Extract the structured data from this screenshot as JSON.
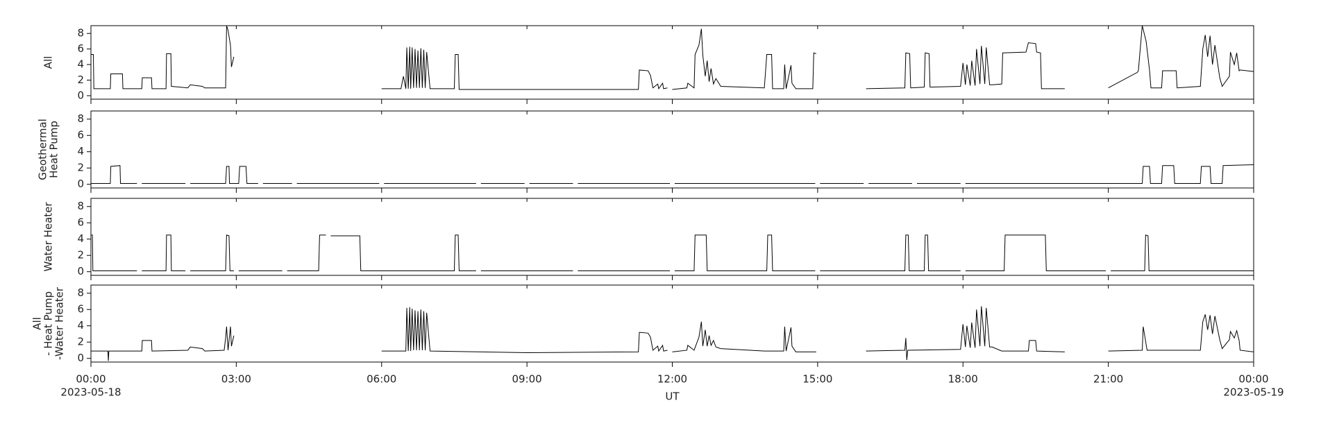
{
  "chart_data": [
    {
      "type": "line",
      "ylabel": [
        "All"
      ],
      "color": "#000000",
      "xlim": [
        0,
        24
      ],
      "xticks": [
        0,
        3,
        6,
        9,
        12,
        15,
        18,
        21,
        24
      ],
      "ylim": [
        -0.45,
        9.0
      ],
      "yticks": [
        0,
        2,
        4,
        6,
        8
      ],
      "x": [
        0,
        0.05,
        0.06,
        0.4,
        0.41,
        0.65,
        0.66,
        1.05,
        1.06,
        1.25,
        1.26,
        1.55,
        1.56,
        1.65,
        1.66,
        2.0,
        2.05,
        2.3,
        2.35,
        2.78,
        2.8,
        2.83,
        2.88,
        2.9,
        2.95,
        3.0,
        6.0,
        6.4,
        6.45,
        6.5,
        6.52,
        6.55,
        6.58,
        6.6,
        6.63,
        6.66,
        6.69,
        6.72,
        6.75,
        6.78,
        6.81,
        6.84,
        6.87,
        6.9,
        6.93,
        7.0,
        7.5,
        7.52,
        7.58,
        7.6,
        9.0,
        11.3,
        11.32,
        11.5,
        11.55,
        11.6,
        11.7,
        11.72,
        11.8,
        11.82,
        11.9,
        11.95,
        12.0,
        12.3,
        12.32,
        12.45,
        12.47,
        12.55,
        12.6,
        12.63,
        12.68,
        12.72,
        12.76,
        12.8,
        12.85,
        12.9,
        13.0,
        13.9,
        13.95,
        14.05,
        14.07,
        14.3,
        14.32,
        14.35,
        14.45,
        14.47,
        14.55,
        14.9,
        14.92,
        14.97,
        15.0,
        16.0,
        16.8,
        16.82,
        16.9,
        16.92,
        17.2,
        17.22,
        17.3,
        17.32,
        17.95,
        18.0,
        18.05,
        18.08,
        18.15,
        18.18,
        18.25,
        18.28,
        18.35,
        18.38,
        18.45,
        18.48,
        18.55,
        18.6,
        18.8,
        18.82,
        19.3,
        19.35,
        19.5,
        19.52,
        19.6,
        19.62,
        20.1,
        20.5,
        21.0,
        21.6,
        21.62,
        21.7,
        21.78,
        21.85,
        21.88,
        22.1,
        22.12,
        22.4,
        22.42,
        22.9,
        22.95,
        23.0,
        23.05,
        23.1,
        23.15,
        23.2,
        23.3,
        23.35,
        23.5,
        23.52,
        23.6,
        23.65,
        23.7,
        23.72,
        24.0
      ],
      "values": [
        5.3,
        5.3,
        0.9,
        0.9,
        2.8,
        2.8,
        0.9,
        0.9,
        2.3,
        2.3,
        0.9,
        0.9,
        5.4,
        5.4,
        1.2,
        1.0,
        1.4,
        1.2,
        1.0,
        1.0,
        9.0,
        8.4,
        6.5,
        3.7,
        5.0,
        null,
        0.9,
        0.9,
        2.5,
        0.9,
        6.2,
        0.9,
        6.3,
        0.9,
        6.2,
        1.0,
        6.0,
        1.0,
        5.8,
        1.0,
        6.1,
        1.0,
        5.9,
        1.0,
        5.6,
        0.9,
        0.9,
        5.3,
        5.3,
        0.8,
        0.8,
        0.8,
        3.3,
        3.2,
        2.6,
        1.0,
        1.5,
        0.9,
        1.6,
        0.9,
        1.0,
        null,
        0.8,
        1.0,
        1.6,
        1.0,
        5.3,
        6.5,
        8.6,
        5.2,
        2.5,
        4.5,
        1.8,
        3.5,
        1.5,
        2.2,
        1.2,
        1.0,
        5.3,
        5.3,
        0.9,
        0.9,
        4.0,
        0.9,
        3.9,
        1.6,
        0.9,
        0.9,
        5.5,
        5.4,
        null,
        0.9,
        1.0,
        5.5,
        5.4,
        1.0,
        1.1,
        5.5,
        5.4,
        1.1,
        1.2,
        4.2,
        1.4,
        4.0,
        1.3,
        4.5,
        1.3,
        6.0,
        1.5,
        6.4,
        1.5,
        6.2,
        1.4,
        1.4,
        1.5,
        5.5,
        5.6,
        6.8,
        6.7,
        5.6,
        5.5,
        0.9,
        0.9,
        null,
        1.0,
        3.0,
        3.2,
        9.0,
        7.0,
        3.3,
        1.0,
        1.0,
        3.2,
        3.2,
        1.0,
        1.2,
        6.0,
        7.8,
        5.0,
        7.7,
        4.0,
        6.5,
        2.3,
        1.2,
        2.5,
        5.6,
        4.0,
        5.5,
        3.2,
        3.3,
        3.1
      ]
    },
    {
      "type": "line",
      "ylabel": [
        "Geothermal",
        "Heat Pump"
      ],
      "color": "#000000",
      "xlim": [
        0,
        24
      ],
      "xticks": [
        0,
        3,
        6,
        9,
        12,
        15,
        18,
        21,
        24
      ],
      "ylim": [
        -0.45,
        9.0
      ],
      "yticks": [
        0,
        2,
        4,
        6,
        8
      ],
      "x": [
        0,
        0.4,
        0.41,
        0.6,
        0.61,
        0.95,
        1.0,
        1.05,
        1.95,
        2.0,
        2.05,
        2.78,
        2.8,
        2.85,
        2.86,
        3.05,
        3.07,
        3.2,
        3.22,
        3.45,
        3.5,
        3.55,
        4.15,
        4.2,
        4.25,
        5.95,
        6.0,
        6.05,
        7.95,
        8.0,
        8.05,
        8.95,
        9.0,
        9.05,
        9.95,
        10.0,
        10.05,
        11.95,
        12.0,
        12.05,
        14.95,
        15.0,
        15.05,
        15.95,
        16.0,
        16.05,
        16.95,
        17.0,
        17.05,
        17.95,
        18.0,
        18.05,
        21.7,
        21.72,
        21.85,
        21.87,
        22.1,
        22.12,
        22.35,
        22.37,
        22.9,
        22.92,
        23.1,
        23.12,
        23.35,
        23.37,
        24.0
      ],
      "values": [
        0.1,
        0.1,
        2.2,
        2.3,
        0.1,
        0.1,
        null,
        0.1,
        0.1,
        null,
        0.1,
        0.1,
        2.2,
        2.2,
        0.1,
        0.1,
        2.2,
        2.2,
        0.1,
        0.1,
        null,
        0.1,
        0.1,
        null,
        0.1,
        0.1,
        null,
        0.1,
        0.1,
        null,
        0.1,
        0.1,
        null,
        0.1,
        0.1,
        null,
        0.1,
        0.1,
        null,
        0.1,
        0.1,
        null,
        0.1,
        0.1,
        null,
        0.1,
        0.1,
        null,
        0.1,
        0.1,
        null,
        0.1,
        0.1,
        2.2,
        2.2,
        0.1,
        0.1,
        2.3,
        2.3,
        0.1,
        0.1,
        2.2,
        2.2,
        0.1,
        0.1,
        2.3,
        2.4
      ]
    },
    {
      "type": "line",
      "ylabel": [
        "Water Heater"
      ],
      "color": "#000000",
      "xlim": [
        0,
        24
      ],
      "xticks": [
        0,
        3,
        6,
        9,
        12,
        15,
        18,
        21,
        24
      ],
      "ylim": [
        -0.45,
        9.0
      ],
      "yticks": [
        0,
        2,
        4,
        6,
        8
      ],
      "x": [
        0,
        0.03,
        0.04,
        0.95,
        1.0,
        1.05,
        1.55,
        1.56,
        1.65,
        1.66,
        1.95,
        2.0,
        2.05,
        2.78,
        2.8,
        2.85,
        2.87,
        2.95,
        3.0,
        3.05,
        3.95,
        4.0,
        4.05,
        4.7,
        4.72,
        4.85,
        4.9,
        4.95,
        5.55,
        5.57,
        7.5,
        7.52,
        7.58,
        7.6,
        7.95,
        8.0,
        8.05,
        9.95,
        10.0,
        10.05,
        11.95,
        12.0,
        12.05,
        12.45,
        12.47,
        12.7,
        12.72,
        13.95,
        13.97,
        14.05,
        14.07,
        14.95,
        15.0,
        15.05,
        16.8,
        16.82,
        16.87,
        16.89,
        17.2,
        17.22,
        17.27,
        17.29,
        17.95,
        18.0,
        18.05,
        18.85,
        18.87,
        19.7,
        19.72,
        20.95,
        21.0,
        21.05,
        21.75,
        21.77,
        21.82,
        21.84,
        24.0
      ],
      "values": [
        4.5,
        4.5,
        0.1,
        0.1,
        null,
        0.1,
        0.1,
        4.5,
        4.5,
        0.1,
        0.1,
        null,
        0.1,
        0.1,
        4.5,
        4.4,
        0.1,
        0.1,
        null,
        0.1,
        0.1,
        null,
        0.1,
        0.1,
        4.5,
        4.5,
        null,
        4.4,
        4.4,
        0.1,
        0.1,
        4.5,
        4.5,
        0.1,
        0.1,
        null,
        0.1,
        0.1,
        null,
        0.1,
        0.1,
        null,
        0.1,
        0.1,
        4.5,
        4.5,
        0.1,
        0.1,
        4.5,
        4.5,
        0.1,
        0.1,
        null,
        0.1,
        0.1,
        4.5,
        4.5,
        0.1,
        0.1,
        4.5,
        4.5,
        0.1,
        0.1,
        null,
        0.1,
        0.1,
        4.5,
        4.5,
        0.1,
        0.1,
        null,
        0.1,
        0.1,
        4.5,
        4.4,
        0.1,
        0.1
      ]
    },
    {
      "type": "line",
      "ylabel": [
        "All",
        "- Heat Pump",
        "-Water Heater"
      ],
      "color": "#000000",
      "xlim": [
        0,
        24
      ],
      "xticks": [
        {
          "value": 0,
          "label": "00:00"
        },
        {
          "value": 3,
          "label": "03:00"
        },
        {
          "value": 6,
          "label": "06:00"
        },
        {
          "value": 9,
          "label": "09:00"
        },
        {
          "value": 12,
          "label": "12:00"
        },
        {
          "value": 15,
          "label": "15:00"
        },
        {
          "value": 18,
          "label": "18:00"
        },
        {
          "value": 21,
          "label": "21:00"
        },
        {
          "value": 24,
          "label": "00:00"
        }
      ],
      "date_labels": [
        {
          "value": 0,
          "label": "2023-05-18"
        },
        {
          "value": 24,
          "label": "2023-05-19"
        }
      ],
      "xlabel": "UT",
      "ylim": [
        -0.45,
        9.0
      ],
      "yticks": [
        0,
        2,
        4,
        6,
        8
      ],
      "x": [
        0,
        0.35,
        0.36,
        0.37,
        1.05,
        1.06,
        1.25,
        1.26,
        2.0,
        2.05,
        2.3,
        2.35,
        2.75,
        2.78,
        2.8,
        2.83,
        2.88,
        2.9,
        2.95,
        3.0,
        6.0,
        6.4,
        6.5,
        6.52,
        6.55,
        6.58,
        6.6,
        6.63,
        6.66,
        6.69,
        6.72,
        6.75,
        6.78,
        6.81,
        6.84,
        6.87,
        6.9,
        6.93,
        7.0,
        9.0,
        11.3,
        11.32,
        11.5,
        11.55,
        11.6,
        11.7,
        11.72,
        11.8,
        11.82,
        11.9,
        11.95,
        12.0,
        12.3,
        12.32,
        12.45,
        12.55,
        12.6,
        12.63,
        12.68,
        12.72,
        12.76,
        12.8,
        12.85,
        12.9,
        13.0,
        13.9,
        14.3,
        14.32,
        14.35,
        14.45,
        14.47,
        14.55,
        14.97,
        15.0,
        16.0,
        16.8,
        16.82,
        16.84,
        16.86,
        17.95,
        18.0,
        18.05,
        18.08,
        18.15,
        18.18,
        18.25,
        18.28,
        18.35,
        18.38,
        18.45,
        18.48,
        18.55,
        18.6,
        18.8,
        19.35,
        19.37,
        19.5,
        19.52,
        20.1,
        20.5,
        21.0,
        21.7,
        21.72,
        21.8,
        22.9,
        22.95,
        23.0,
        23.05,
        23.1,
        23.15,
        23.2,
        23.3,
        23.35,
        23.5,
        23.52,
        23.6,
        23.65,
        23.7,
        23.72,
        24.0
      ],
      "values": [
        0.9,
        0.9,
        -0.3,
        0.9,
        0.9,
        2.2,
        2.2,
        0.9,
        1.0,
        1.4,
        1.2,
        0.9,
        1.0,
        2.5,
        3.9,
        1.0,
        3.9,
        1.5,
        2.8,
        null,
        0.9,
        0.9,
        0.9,
        6.2,
        0.9,
        6.3,
        0.9,
        6.1,
        1.0,
        5.9,
        1.0,
        5.8,
        1.0,
        6.0,
        1.0,
        5.8,
        1.0,
        5.6,
        0.9,
        0.7,
        0.8,
        3.2,
        3.1,
        2.6,
        1.0,
        1.5,
        0.9,
        1.6,
        0.9,
        1.0,
        null,
        0.8,
        1.0,
        1.6,
        1.0,
        2.6,
        4.5,
        1.5,
        3.5,
        1.5,
        2.8,
        1.6,
        2.2,
        1.4,
        1.2,
        0.9,
        0.9,
        3.9,
        0.9,
        3.8,
        1.5,
        0.8,
        0.8,
        null,
        0.9,
        1.0,
        2.5,
        -0.2,
        1.0,
        1.1,
        4.2,
        1.4,
        4.0,
        1.3,
        4.4,
        1.3,
        6.0,
        1.5,
        6.4,
        1.5,
        6.2,
        1.4,
        1.4,
        0.9,
        0.9,
        2.2,
        2.2,
        0.9,
        0.8,
        null,
        0.9,
        1.0,
        3.9,
        1.0,
        1.0,
        4.5,
        5.4,
        3.5,
        5.3,
        3.0,
        5.2,
        2.3,
        1.2,
        2.3,
        3.3,
        2.5,
        3.4,
        2.2,
        1.0,
        0.8
      ]
    }
  ]
}
